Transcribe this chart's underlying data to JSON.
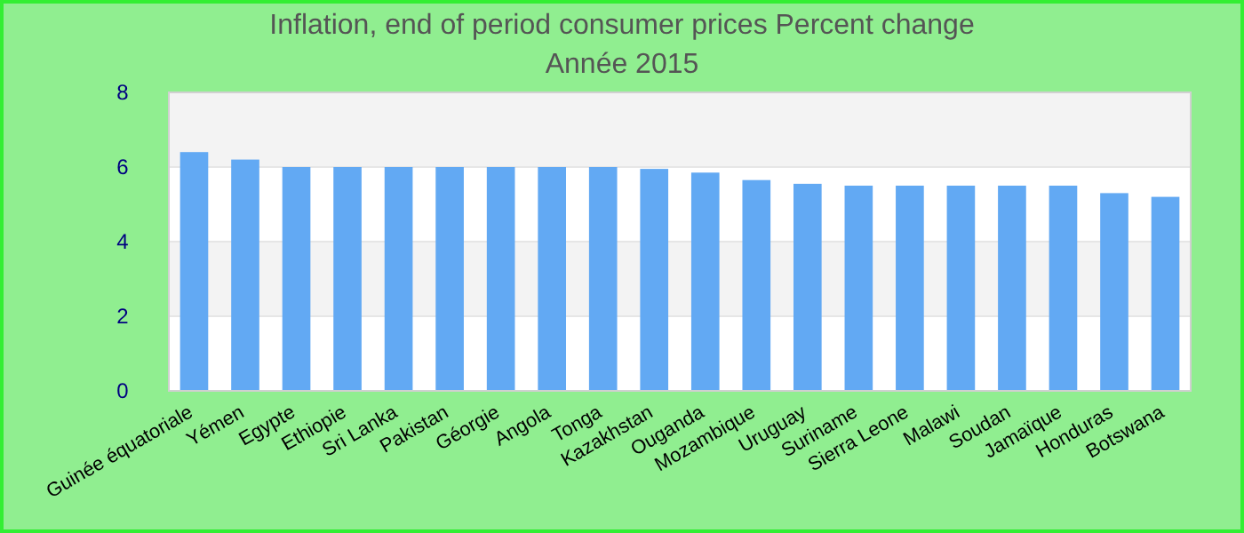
{
  "chart_data": {
    "type": "bar",
    "title": "Inflation, end of period consumer prices  Percent change",
    "subtitle": "Année 2015",
    "categories": [
      "Guinée équatoriale",
      "Yémen",
      "Egypte",
      "Ethiopie",
      "Sri Lanka",
      "Pakistan",
      "Géorgie",
      "Angola",
      "Tonga",
      "Kazakhstan",
      "Ouganda",
      "Mozambique",
      "Uruguay",
      "Suriname",
      "Sierra Leone",
      "Malawi",
      "Soudan",
      "Jamaïque",
      "Honduras",
      "Botswana"
    ],
    "values": [
      6.4,
      6.2,
      6.0,
      6.0,
      6.0,
      6.0,
      6.0,
      6.0,
      6.0,
      5.95,
      5.85,
      5.65,
      5.55,
      5.5,
      5.5,
      5.5,
      5.5,
      5.5,
      5.3,
      5.2
    ],
    "color": "#62a9f3",
    "ylim": [
      0,
      8
    ],
    "yticks": [
      0,
      2,
      4,
      6,
      8
    ],
    "grid": "y"
  }
}
